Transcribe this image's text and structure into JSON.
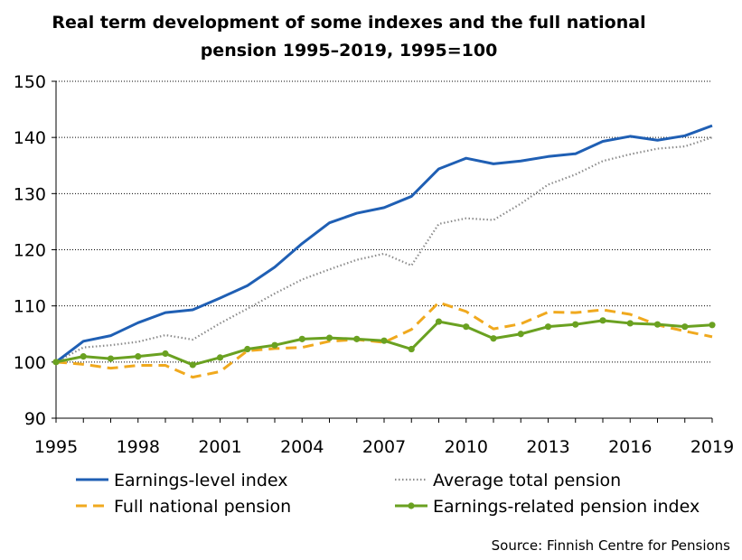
{
  "chart_data": {
    "type": "line",
    "title": [
      "Real term development of some indexes and the full national",
      "pension 1995–2019, 1995=100"
    ],
    "source": "Source: Finnish Centre for Pensions",
    "xlabel": "",
    "ylabel": "",
    "xlim": [
      1995,
      2019
    ],
    "ylim": [
      90,
      150
    ],
    "x_ticks": [
      "1995",
      "1998",
      "2001",
      "2004",
      "2007",
      "2010",
      "2013",
      "2016",
      "2019"
    ],
    "y_ticks": [
      "90",
      "100",
      "110",
      "120",
      "130",
      "140",
      "150"
    ],
    "grid": "horizontal dotted",
    "legend_position": "bottom",
    "x": [
      1995,
      1996,
      1997,
      1998,
      1999,
      2000,
      2001,
      2002,
      2003,
      2004,
      2005,
      2006,
      2007,
      2008,
      2009,
      2010,
      2011,
      2012,
      2013,
      2014,
      2015,
      2016,
      2017,
      2018,
      2019
    ],
    "series": [
      {
        "name": "Earnings-level index",
        "color": "#1f5fb4",
        "style": "solid",
        "marker": false,
        "values": [
          100,
          103.7,
          104.7,
          107.0,
          108.8,
          109.3,
          111.4,
          113.6,
          116.9,
          121.1,
          124.8,
          126.5,
          127.5,
          129.5,
          134.4,
          136.3,
          135.3,
          135.8,
          136.6,
          137.1,
          139.3,
          140.2,
          139.5,
          140.3,
          142.1
        ]
      },
      {
        "name": "Average total pension",
        "color": "#8c8c8c",
        "style": "dotted",
        "marker": false,
        "values": [
          100,
          102.6,
          103.0,
          103.6,
          104.8,
          104.0,
          106.9,
          109.5,
          112.2,
          114.7,
          116.5,
          118.2,
          119.3,
          117.2,
          124.6,
          125.6,
          125.3,
          128.2,
          131.6,
          133.4,
          135.8,
          137.0,
          138.0,
          138.4,
          140.0
        ]
      },
      {
        "name": "Full national pension",
        "color": "#f0a91e",
        "style": "dashed",
        "marker": false,
        "values": [
          100,
          99.6,
          98.9,
          99.4,
          99.4,
          97.3,
          98.3,
          102.0,
          102.4,
          102.6,
          103.7,
          104.0,
          103.5,
          105.8,
          110.6,
          109.0,
          105.9,
          106.8,
          108.9,
          108.8,
          109.3,
          108.5,
          106.6,
          105.5,
          104.5
        ]
      },
      {
        "name": "Earnings-related pension index",
        "color": "#6aa121",
        "style": "solid",
        "marker": true,
        "values": [
          100,
          101.0,
          100.6,
          101.0,
          101.5,
          99.5,
          100.8,
          102.3,
          103.0,
          104.1,
          104.3,
          104.1,
          103.8,
          102.3,
          107.2,
          106.3,
          104.2,
          105.0,
          106.3,
          106.7,
          107.4,
          106.9,
          106.7,
          106.3,
          106.6
        ]
      }
    ]
  }
}
